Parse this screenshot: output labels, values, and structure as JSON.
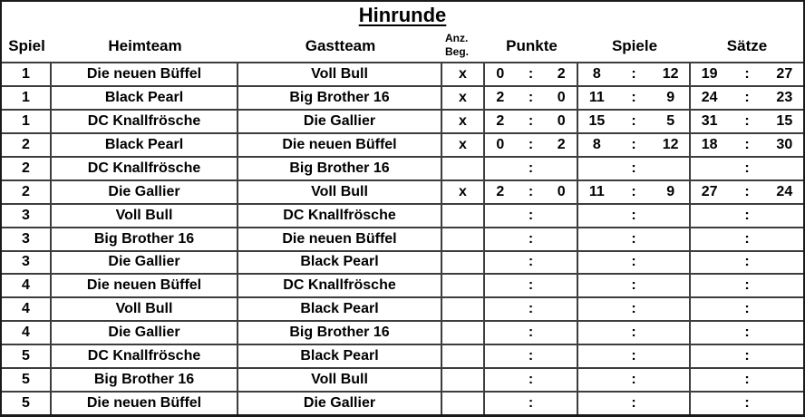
{
  "title": "Hinrunde",
  "colon": ":",
  "columns": {
    "spiel": "Spiel",
    "heimteam": "Heimteam",
    "gastteam": "Gastteam",
    "anz_line1": "Anz.",
    "anz_line2": "Beg.",
    "punkte": "Punkte",
    "spiele": "Spiele",
    "saetze": "Sätze"
  },
  "colors": {
    "text": "#000000",
    "inner_border": "#3d3d3d",
    "outer_border": "#1a1a1a",
    "background": "#ffffff"
  },
  "rows": [
    {
      "spiel": "1",
      "heim": "Die neuen Büffel",
      "gast": "Voll Bull",
      "beg": "x",
      "punkte": [
        "0",
        "2"
      ],
      "spiele": [
        "8",
        "12"
      ],
      "saetze": [
        "19",
        "27"
      ]
    },
    {
      "spiel": "1",
      "heim": "Black Pearl",
      "gast": "Big Brother 16",
      "beg": "x",
      "punkte": [
        "2",
        "0"
      ],
      "spiele": [
        "11",
        "9"
      ],
      "saetze": [
        "24",
        "23"
      ]
    },
    {
      "spiel": "1",
      "heim": "DC Knallfrösche",
      "gast": "Die Gallier",
      "beg": "x",
      "punkte": [
        "2",
        "0"
      ],
      "spiele": [
        "15",
        "5"
      ],
      "saetze": [
        "31",
        "15"
      ]
    },
    {
      "spiel": "2",
      "heim": "Black Pearl",
      "gast": "Die neuen Büffel",
      "beg": "x",
      "punkte": [
        "0",
        "2"
      ],
      "spiele": [
        "8",
        "12"
      ],
      "saetze": [
        "18",
        "30"
      ]
    },
    {
      "spiel": "2",
      "heim": "DC Knallfrösche",
      "gast": "Big Brother 16",
      "beg": "",
      "punkte": [
        "",
        ""
      ],
      "spiele": [
        "",
        ""
      ],
      "saetze": [
        "",
        ""
      ]
    },
    {
      "spiel": "2",
      "heim": "Die Gallier",
      "gast": "Voll Bull",
      "beg": "x",
      "punkte": [
        "2",
        "0"
      ],
      "spiele": [
        "11",
        "9"
      ],
      "saetze": [
        "27",
        "24"
      ]
    },
    {
      "spiel": "3",
      "heim": "Voll Bull",
      "gast": "DC Knallfrösche",
      "beg": "",
      "punkte": [
        "",
        ""
      ],
      "spiele": [
        "",
        ""
      ],
      "saetze": [
        "",
        ""
      ]
    },
    {
      "spiel": "3",
      "heim": "Big Brother 16",
      "gast": "Die neuen Büffel",
      "beg": "",
      "punkte": [
        "",
        ""
      ],
      "spiele": [
        "",
        ""
      ],
      "saetze": [
        "",
        ""
      ]
    },
    {
      "spiel": "3",
      "heim": "Die Gallier",
      "gast": "Black Pearl",
      "beg": "",
      "punkte": [
        "",
        ""
      ],
      "spiele": [
        "",
        ""
      ],
      "saetze": [
        "",
        ""
      ]
    },
    {
      "spiel": "4",
      "heim": "Die neuen Büffel",
      "gast": "DC Knallfrösche",
      "beg": "",
      "punkte": [
        "",
        ""
      ],
      "spiele": [
        "",
        ""
      ],
      "saetze": [
        "",
        ""
      ]
    },
    {
      "spiel": "4",
      "heim": "Voll Bull",
      "gast": "Black Pearl",
      "beg": "",
      "punkte": [
        "",
        ""
      ],
      "spiele": [
        "",
        ""
      ],
      "saetze": [
        "",
        ""
      ]
    },
    {
      "spiel": "4",
      "heim": "Die Gallier",
      "gast": "Big Brother 16",
      "beg": "",
      "punkte": [
        "",
        ""
      ],
      "spiele": [
        "",
        ""
      ],
      "saetze": [
        "",
        ""
      ]
    },
    {
      "spiel": "5",
      "heim": "DC Knallfrösche",
      "gast": "Black Pearl",
      "beg": "",
      "punkte": [
        "",
        ""
      ],
      "spiele": [
        "",
        ""
      ],
      "saetze": [
        "",
        ""
      ]
    },
    {
      "spiel": "5",
      "heim": "Big Brother 16",
      "gast": "Voll Bull",
      "beg": "",
      "punkte": [
        "",
        ""
      ],
      "spiele": [
        "",
        ""
      ],
      "saetze": [
        "",
        ""
      ]
    },
    {
      "spiel": "5",
      "heim": "Die neuen Büffel",
      "gast": "Die Gallier",
      "beg": "",
      "punkte": [
        "",
        ""
      ],
      "spiele": [
        "",
        ""
      ],
      "saetze": [
        "",
        ""
      ]
    }
  ]
}
